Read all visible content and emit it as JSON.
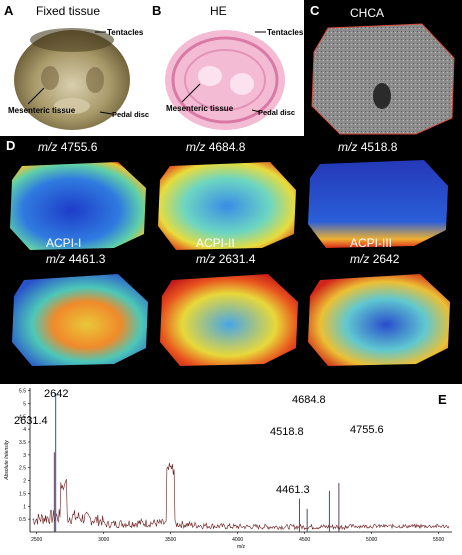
{
  "panels": {
    "A": {
      "letter": "A",
      "title": "Fixed tissue",
      "labels": {
        "tentacles": "Tentacles",
        "mesenteric": "Mesenteric tissue",
        "pedal": "Pedal disc"
      }
    },
    "B": {
      "letter": "B",
      "title": "HE",
      "labels": {
        "tentacles": "Tentacles",
        "mesenteric": "Mesenteric tissue",
        "pedal": "Pedal disc"
      }
    },
    "C": {
      "letter": "C",
      "title": "CHCA"
    },
    "D": {
      "letter": "D"
    },
    "E": {
      "letter": "E"
    }
  },
  "images": [
    {
      "prefix": "m/z",
      "value": "4755.6"
    },
    {
      "prefix": "m/z",
      "value": "4684.8"
    },
    {
      "prefix": "m/z",
      "value": "4518.8"
    },
    {
      "name": "ACPI-I",
      "prefix": "m/z",
      "value": "4461.3"
    },
    {
      "name": "ACPI-II",
      "prefix": "m/z",
      "value": "2631.4"
    },
    {
      "name": "ACPI-III",
      "prefix": "m/z",
      "value": "2642"
    }
  ],
  "spectrum": {
    "ylabel": "Absolute Intensity",
    "xlabel": "m/z",
    "yticks": [
      "5.5",
      "5",
      "4.5",
      "4",
      "3.5",
      "3",
      "2.5",
      "2",
      "1.5",
      "1",
      "0.5"
    ],
    "xticks": [
      "2500",
      "3000",
      "3500",
      "4000",
      "4500",
      "5000",
      "5500"
    ],
    "peaks": [
      {
        "label": "2642",
        "mz": 2642,
        "intensity": 5.4
      },
      {
        "label": "2631.4",
        "mz": 2631.4,
        "intensity": 3.1
      },
      {
        "label": "4684.8",
        "mz": 4684.8,
        "intensity": 1.6
      },
      {
        "label": "4518.8",
        "mz": 4518.8,
        "intensity": 0.9
      },
      {
        "label": "4755.6",
        "mz": 4755.6,
        "intensity": 1.9
      },
      {
        "label": "4461.3",
        "mz": 4461.3,
        "intensity": 1.3
      }
    ],
    "xlim": [
      2450,
      5600
    ],
    "ylim": [
      0,
      5.6
    ]
  }
}
